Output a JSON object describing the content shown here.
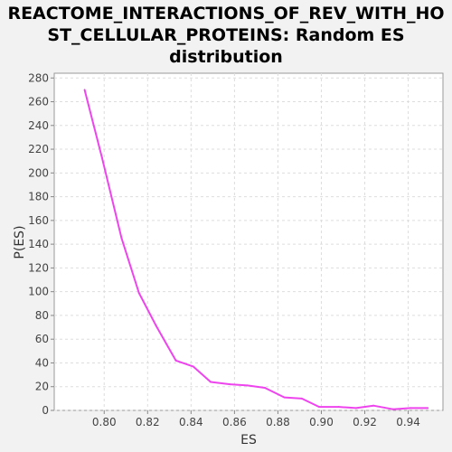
{
  "chart_data": {
    "type": "line",
    "title_lines": [
      "REACTOME_INTERACTIONS_OF_REV_WITH_HO",
      "ST_CELLULAR_PROTEINS: Random ES",
      "distribution"
    ],
    "xlabel": "ES",
    "ylabel": "P(ES)",
    "xlim": [
      0.777,
      0.956
    ],
    "ylim": [
      0,
      284
    ],
    "x_ticks": [
      0.8,
      0.82,
      0.84,
      0.86,
      0.88,
      0.9,
      0.92,
      0.94
    ],
    "x_tick_labels": [
      "0.80",
      "0.82",
      "0.84",
      "0.86",
      "0.88",
      "0.90",
      "0.92",
      "0.94"
    ],
    "y_ticks": [
      0,
      20,
      40,
      60,
      80,
      100,
      120,
      140,
      160,
      180,
      200,
      220,
      240,
      260,
      280
    ],
    "y_tick_labels": [
      "0",
      "20",
      "40",
      "60",
      "80",
      "100",
      "120",
      "140",
      "160",
      "180",
      "200",
      "220",
      "240",
      "260",
      "280"
    ],
    "grid": true,
    "series": [
      {
        "color": "#ee44ee",
        "x": [
          0.791,
          0.799,
          0.808,
          0.816,
          0.824,
          0.833,
          0.841,
          0.849,
          0.858,
          0.866,
          0.874,
          0.883,
          0.891,
          0.899,
          0.908,
          0.916,
          0.924,
          0.933,
          0.941,
          0.949
        ],
        "y": [
          270,
          213,
          145,
          99,
          71,
          42,
          37,
          24,
          22,
          21,
          19,
          11,
          10,
          3,
          3,
          2,
          4,
          1,
          2,
          2
        ]
      }
    ]
  }
}
